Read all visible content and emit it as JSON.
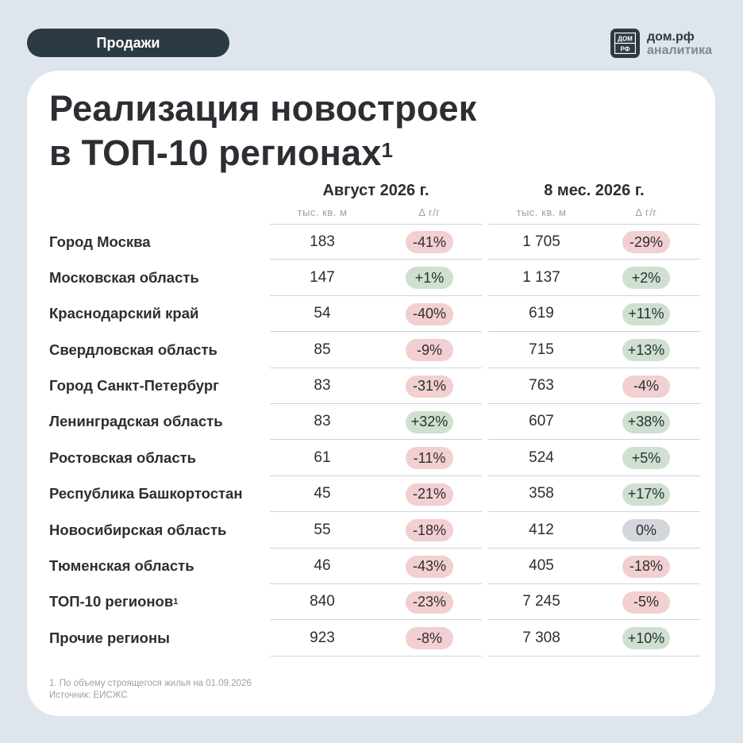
{
  "header": {
    "section_tag": "Продажи",
    "brand_name": "дом.рф",
    "brand_sub": "аналитика",
    "logo_top": "ДОМ",
    "logo_bottom": "РФ"
  },
  "card": {
    "title_line1": "Реализация новостроек",
    "title_line2": "в ТОП-10 регионах",
    "title_sup": "1"
  },
  "columns": {
    "group_a": "Август 2026 г.",
    "group_b": "8 мес. 2026 г.",
    "unit_a": "тыс. кв. м",
    "delta_a": "Δ г/г",
    "unit_b": "тыс. кв. м",
    "delta_b": "Δ г/г"
  },
  "rows": [
    {
      "name": "Город Москва",
      "sup": "",
      "a": "183",
      "da": "-41%",
      "da_type": "neg",
      "b": "1 705",
      "db": "-29%",
      "db_type": "neg"
    },
    {
      "name": "Московская область",
      "sup": "",
      "a": "147",
      "da": "+1%",
      "da_type": "pos",
      "b": "1 137",
      "db": "+2%",
      "db_type": "pos"
    },
    {
      "name": "Краснодарский край",
      "sup": "",
      "a": "54",
      "da": "-40%",
      "da_type": "neg",
      "b": "619",
      "db": "+11%",
      "db_type": "pos"
    },
    {
      "name": "Свердловская область",
      "sup": "",
      "a": "85",
      "da": "-9%",
      "da_type": "neg",
      "b": "715",
      "db": "+13%",
      "db_type": "pos"
    },
    {
      "name": "Город Санкт-Петербург",
      "sup": "",
      "a": "83",
      "da": "-31%",
      "da_type": "neg",
      "b": "763",
      "db": "-4%",
      "db_type": "neg"
    },
    {
      "name": "Ленинградская область",
      "sup": "",
      "a": "83",
      "da": "+32%",
      "da_type": "pos",
      "b": "607",
      "db": "+38%",
      "db_type": "pos"
    },
    {
      "name": "Ростовская область",
      "sup": "",
      "a": "61",
      "da": "-11%",
      "da_type": "neg",
      "b": "524",
      "db": "+5%",
      "db_type": "pos"
    },
    {
      "name": "Республика Башкортостан",
      "sup": "",
      "a": "45",
      "da": "-21%",
      "da_type": "neg",
      "b": "358",
      "db": "+17%",
      "db_type": "pos"
    },
    {
      "name": "Новосибирская область",
      "sup": "",
      "a": "55",
      "da": "-18%",
      "da_type": "neg",
      "b": "412",
      "db": "0%",
      "db_type": "zero"
    },
    {
      "name": "Тюменская область",
      "sup": "",
      "a": "46",
      "da": "-43%",
      "da_type": "neg",
      "b": "405",
      "db": "-18%",
      "db_type": "neg"
    },
    {
      "name": "ТОП-10 регионов",
      "sup": "1",
      "a": "840",
      "da": "-23%",
      "da_type": "neg",
      "b": "7 245",
      "db": "-5%",
      "db_type": "neg"
    },
    {
      "name": "Прочие регионы",
      "sup": "",
      "a": "923",
      "da": "-8%",
      "da_type": "neg",
      "b": "7 308",
      "db": "+10%",
      "db_type": "pos"
    }
  ],
  "footnote": {
    "line1": "1. По объему строящегося жилья на 01.09.2026",
    "line2": "Источник: ЕИСЖС"
  },
  "colors": {
    "negative_badge": "#f2cfd0",
    "positive_badge": "#cfe0d0",
    "zero_badge": "#d3d6da",
    "dark": "#2c3a44"
  }
}
